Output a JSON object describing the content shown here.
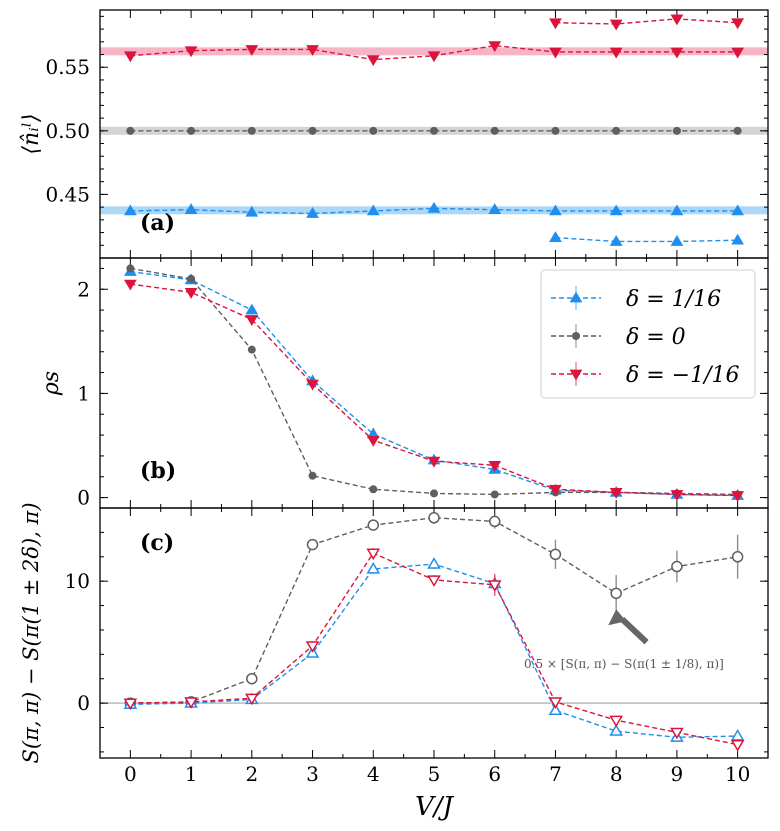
{
  "chart_data": {
    "type": "line",
    "x_categories": [
      0,
      1,
      2,
      3,
      4,
      5,
      6,
      7,
      8,
      9,
      10
    ],
    "xlabel": "V/J",
    "colors": {
      "blue": "#1f8fef",
      "gray": "#5f5f5f",
      "red": "#dc143c",
      "blue_band": "#9fd0f5",
      "gray_band": "#cccccc",
      "red_band": "#f5a8bd"
    },
    "legend": [
      {
        "key": "blue",
        "label": "δ = 1/16",
        "marker": "triangle-up"
      },
      {
        "key": "gray",
        "label": "δ = 0",
        "marker": "circle"
      },
      {
        "key": "red",
        "label": "δ = −1/16",
        "marker": "triangle-down"
      }
    ],
    "panels": [
      {
        "id": "a",
        "label": "(a)",
        "ylabel": "⟨n̂ᵢˡ⟩",
        "ylim": [
          0.4,
          0.595
        ],
        "yticks": [
          "0.45",
          "0.50",
          "0.55"
        ],
        "ytick_values": [
          0.45,
          0.5,
          0.55
        ],
        "bands": [
          {
            "color": "red_band",
            "y": 0.5625,
            "half_width": 0.003
          },
          {
            "color": "gray_band",
            "y": 0.5,
            "half_width": 0.003
          },
          {
            "color": "blue_band",
            "y": 0.4375,
            "half_width": 0.003
          }
        ],
        "series": [
          {
            "key": "red",
            "marker": "triangle-down",
            "x": [
              0,
              1,
              2,
              3,
              4,
              5,
              6,
              7,
              8,
              9,
              10
            ],
            "y": [
              0.559,
              0.563,
              0.564,
              0.564,
              0.556,
              0.559,
              0.567,
              0.562,
              0.562,
              0.562,
              0.562
            ]
          },
          {
            "key": "red",
            "marker": "triangle-down",
            "x": [
              7,
              8,
              9,
              10
            ],
            "y": [
              0.585,
              0.584,
              0.588,
              0.585
            ]
          },
          {
            "key": "gray",
            "marker": "circle",
            "x": [
              0,
              1,
              2,
              3,
              4,
              5,
              6,
              7,
              8,
              9,
              10
            ],
            "y": [
              0.5,
              0.5,
              0.5,
              0.5,
              0.5,
              0.5,
              0.5,
              0.5,
              0.5,
              0.5,
              0.5
            ]
          },
          {
            "key": "blue",
            "marker": "triangle-up",
            "x": [
              0,
              1,
              2,
              3,
              4,
              5,
              6,
              7,
              8,
              9,
              10
            ],
            "y": [
              0.437,
              0.438,
              0.436,
              0.435,
              0.437,
              0.439,
              0.438,
              0.437,
              0.437,
              0.437,
              0.437
            ]
          },
          {
            "key": "blue",
            "marker": "triangle-up",
            "x": [
              7,
              8,
              9,
              10
            ],
            "y": [
              0.416,
              0.413,
              0.413,
              0.414
            ]
          }
        ]
      },
      {
        "id": "b",
        "label": "(b)",
        "ylabel": "ρs",
        "ylim": [
          -0.1,
          2.3
        ],
        "yticks": [
          "0",
          "1",
          "2"
        ],
        "ytick_values": [
          0,
          1,
          2
        ],
        "series": [
          {
            "key": "blue",
            "marker": "triangle-up",
            "x": [
              0,
              1,
              2,
              3,
              4,
              5,
              6,
              7,
              8,
              9,
              10
            ],
            "y": [
              2.17,
              2.09,
              1.8,
              1.12,
              0.61,
              0.36,
              0.27,
              0.07,
              0.05,
              0.03,
              0.02
            ]
          },
          {
            "key": "gray",
            "marker": "circle",
            "x": [
              0,
              1,
              2,
              3,
              4,
              5,
              6,
              7,
              8,
              9,
              10
            ],
            "y": [
              2.2,
              2.1,
              1.42,
              0.21,
              0.08,
              0.04,
              0.03,
              0.05,
              0.05,
              0.04,
              0.03
            ]
          },
          {
            "key": "red",
            "marker": "triangle-down",
            "x": [
              0,
              1,
              2,
              3,
              4,
              5,
              6,
              7,
              8,
              9,
              10
            ],
            "y": [
              2.05,
              1.97,
              1.71,
              1.09,
              0.55,
              0.35,
              0.31,
              0.08,
              0.05,
              0.03,
              0.02
            ]
          }
        ]
      },
      {
        "id": "c",
        "label": "(c)",
        "ylabel": "S(π, π) − S(π(1 ± 2δ), π)",
        "ylim": [
          -4.5,
          16.0
        ],
        "yticks": [
          "0",
          "10"
        ],
        "ytick_values": [
          0,
          10
        ],
        "hline": 0,
        "series": [
          {
            "key": "gray",
            "marker": "circle-open",
            "x": [
              0,
              1,
              2,
              3,
              4,
              5,
              6,
              7,
              8,
              9,
              10
            ],
            "y": [
              0.0,
              0.1,
              2.0,
              13.0,
              14.6,
              15.2,
              14.9,
              12.2,
              9.0,
              11.2,
              12.0
            ],
            "err": [
              0.2,
              0.2,
              0.3,
              0.4,
              0.4,
              0.5,
              0.6,
              1.2,
              1.5,
              1.3,
              1.8
            ]
          },
          {
            "key": "blue",
            "marker": "triangle-up-open",
            "x": [
              0,
              1,
              2,
              3,
              4,
              5,
              6,
              7,
              8,
              9,
              10
            ],
            "y": [
              -0.1,
              0.0,
              0.3,
              4.1,
              11.0,
              11.4,
              9.8,
              -0.6,
              -2.3,
              -2.8,
              -2.7
            ],
            "err": [
              0.1,
              0.1,
              0.2,
              0.3,
              0.4,
              0.4,
              0.6,
              0.3,
              0.2,
              0.2,
              0.3
            ]
          },
          {
            "key": "red",
            "marker": "triangle-down-open",
            "x": [
              0,
              1,
              2,
              3,
              4,
              5,
              6,
              7,
              8,
              9,
              10
            ],
            "y": [
              0.0,
              0.1,
              0.4,
              4.7,
              12.3,
              10.1,
              9.7,
              0.1,
              -1.4,
              -2.4,
              -3.4
            ],
            "err": [
              0.1,
              0.1,
              0.2,
              0.3,
              0.4,
              0.4,
              0.9,
              0.3,
              0.2,
              0.2,
              0.3
            ]
          }
        ],
        "annotation": "0.5 × [S(π, π) − S(π(1 ± 1/8), π)]",
        "annotation_arrow_target": {
          "x": 8,
          "y": 7.7
        },
        "annotation_arrow_tail": {
          "x": 8.5,
          "y": 5.0
        }
      }
    ]
  }
}
